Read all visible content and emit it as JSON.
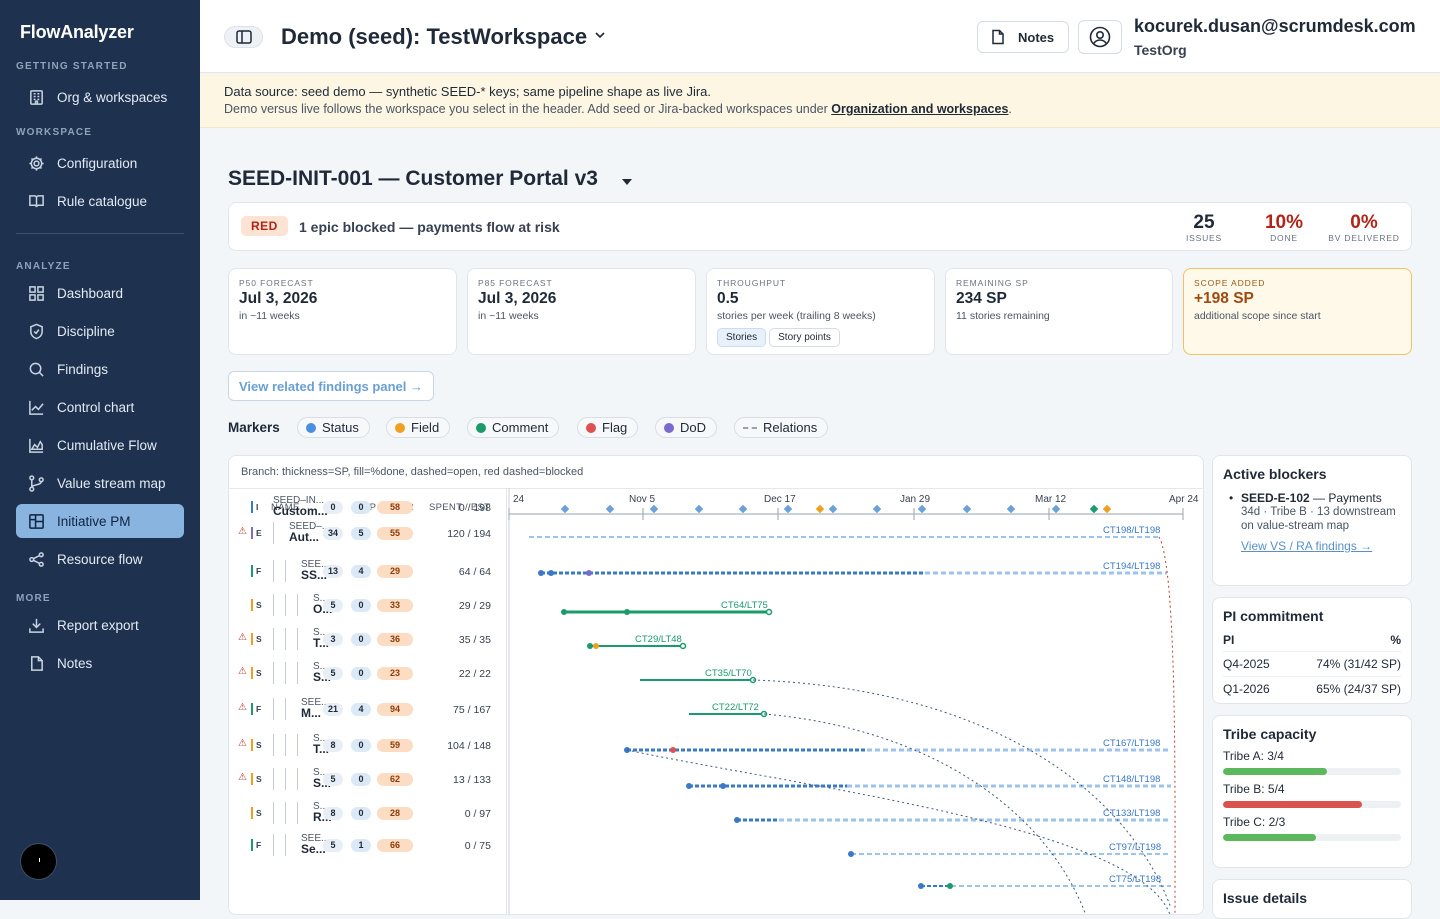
{
  "app": {
    "name": "FlowAnalyzer"
  },
  "sidebar": {
    "sections": {
      "getting_started": "GETTING STARTED",
      "workspace": "WORKSPACE",
      "analyze": "ANALYZE",
      "more": "MORE"
    },
    "items": [
      {
        "label": "Org & workspaces",
        "icon": "building-icon"
      },
      {
        "label": "Configuration",
        "icon": "gear-icon"
      },
      {
        "label": "Rule catalogue",
        "icon": "book-icon"
      },
      {
        "label": "Dashboard",
        "icon": "grid-icon"
      },
      {
        "label": "Discipline",
        "icon": "shield-icon"
      },
      {
        "label": "Findings",
        "icon": "search-icon"
      },
      {
        "label": "Control chart",
        "icon": "line-chart-icon"
      },
      {
        "label": "Cumulative Flow",
        "icon": "area-chart-icon"
      },
      {
        "label": "Value stream map",
        "icon": "branch-icon"
      },
      {
        "label": "Initiative PM",
        "icon": "layout-icon"
      },
      {
        "label": "Resource flow",
        "icon": "share-icon"
      },
      {
        "label": "Report export",
        "icon": "download-icon"
      },
      {
        "label": "Notes",
        "icon": "note-icon"
      }
    ],
    "active": "Initiative PM"
  },
  "header": {
    "workspace": "Demo (seed): TestWorkspace",
    "notes_label": "Notes",
    "email": "kocurek.dusan@scrumdesk.com",
    "org": "TestOrg"
  },
  "banner": {
    "line1": "Data source: seed demo — synthetic SEED-* keys; same pipeline shape as live Jira.",
    "line2_pre": "Demo versus live follows the workspace you select in the header. Add seed or Jira-backed workspaces under ",
    "line2_link": "Organization and workspaces",
    "line2_post": "."
  },
  "initiative": {
    "title": "SEED-INIT-001 — Customer Portal v3"
  },
  "status": {
    "badge": "RED",
    "text": "1 epic blocked — payments flow at risk",
    "stats": [
      {
        "value": "25",
        "label": "ISSUES",
        "color": "#1f2937"
      },
      {
        "value": "10%",
        "label": "DONE",
        "color": "#b42318"
      },
      {
        "value": "0%",
        "label": "BV DELIVERED",
        "color": "#b42318"
      }
    ]
  },
  "cards": [
    {
      "title": "P50 FORECAST",
      "value": "Jul 3, 2026",
      "sub": "in ~11 weeks"
    },
    {
      "title": "P85 FORECAST",
      "value": "Jul 3, 2026",
      "sub": "in ~11 weeks"
    },
    {
      "title": "THROUGHPUT",
      "value": "0.5",
      "sub": "stories per week (trailing 8 weeks)",
      "chips": [
        "Stories",
        "Story points"
      ]
    },
    {
      "title": "REMAINING SP",
      "value": "234 SP",
      "sub": "11 stories remaining"
    },
    {
      "title": "SCOPE ADDED",
      "value": "+198 SP",
      "sub": "additional scope since start"
    }
  ],
  "findings_button": "View related findings panel →",
  "markers": {
    "label": "Markers",
    "items": [
      {
        "label": "Status",
        "color": "#4a8fe0"
      },
      {
        "label": "Field",
        "color": "#f0a020"
      },
      {
        "label": "Comment",
        "color": "#1a9b6b"
      },
      {
        "label": "Flag",
        "color": "#e05050"
      },
      {
        "label": "DoD",
        "color": "#7b6ad0"
      },
      {
        "label": "Relations",
        "color": "dashed"
      }
    ]
  },
  "gantt": {
    "legend": "Branch: thickness=SP, fill=%done, dashed=open, red dashed=blocked",
    "headers": {
      "name": "NAME",
      "sp": "SP / BV / R",
      "spent": "SPENT / EST"
    },
    "axis": [
      "24",
      "Nov 5",
      "Dec 17",
      "Jan 29",
      "Mar 12",
      "Apr 24"
    ],
    "rows": [
      {
        "type": "I",
        "name1": "SEED–IN...",
        "name2": "Custom...",
        "sp": "0",
        "bv": "0",
        "r": "58",
        "spent": "0 / 198",
        "ct": "CT198/LT198",
        "warn": false,
        "color": "#3a78c8"
      },
      {
        "type": "E",
        "name1": "SEED–...",
        "name2": "Aut...",
        "sp": "34",
        "bv": "5",
        "r": "55",
        "spent": "120 / 194",
        "ct": "CT194/LT198",
        "warn": true,
        "color": "#3a78c8"
      },
      {
        "type": "F",
        "name1": "SEE...",
        "name2": "SS...",
        "sp": "13",
        "bv": "4",
        "r": "29",
        "spent": "64 / 64",
        "ct": "CT64/LT75",
        "warn": false,
        "color": "#1a9b6b"
      },
      {
        "type": "S",
        "name1": "S...",
        "name2": "O...",
        "sp": "5",
        "bv": "0",
        "r": "33",
        "spent": "29 / 29",
        "ct": "CT29/LT48",
        "warn": false,
        "color": "#1a9b6b"
      },
      {
        "type": "S",
        "name1": "S...",
        "name2": "T...",
        "sp": "3",
        "bv": "0",
        "r": "36",
        "spent": "35 / 35",
        "ct": "CT35/LT70",
        "warn": true,
        "color": "#1a9b6b"
      },
      {
        "type": "S",
        "name1": "S...",
        "name2": "S...",
        "sp": "5",
        "bv": "0",
        "r": "23",
        "spent": "22 / 22",
        "ct": "CT22/LT72",
        "warn": true,
        "color": "#1a9b6b"
      },
      {
        "type": "F",
        "name1": "SEE...",
        "name2": "M...",
        "sp": "21",
        "bv": "4",
        "r": "94",
        "spent": "75 / 167",
        "ct": "CT167/LT198",
        "warn": true,
        "color": "#3a78c8"
      },
      {
        "type": "S",
        "name1": "S...",
        "name2": "T...",
        "sp": "8",
        "bv": "0",
        "r": "59",
        "spent": "104 / 148",
        "ct": "CT148/LT198",
        "warn": true,
        "color": "#3a78c8"
      },
      {
        "type": "S",
        "name1": "S...",
        "name2": "S...",
        "sp": "5",
        "bv": "0",
        "r": "62",
        "spent": "13 / 133",
        "ct": "CT133/LT198",
        "warn": true,
        "color": "#3a78c8"
      },
      {
        "type": "S",
        "name1": "S...",
        "name2": "R...",
        "sp": "8",
        "bv": "0",
        "r": "28",
        "spent": "0 / 97",
        "ct": "CT97/LT198",
        "warn": false,
        "color": "#3a78c8"
      },
      {
        "type": "F",
        "name1": "SEE...",
        "name2": "Se...",
        "sp": "5",
        "bv": "1",
        "r": "66",
        "spent": "0 / 75",
        "ct": "CT75/LT198",
        "warn": false,
        "color": "#3a78c8"
      }
    ]
  },
  "blockers": {
    "title": "Active blockers",
    "items": [
      {
        "key": "SEED-E-102",
        "text": " — Payments",
        "sub": "34d · Tribe B · 13 downstream on value-stream map",
        "link": "View VS / RA findings →"
      }
    ]
  },
  "pi": {
    "title": "PI commitment",
    "headers": [
      "PI",
      "%"
    ],
    "rows": [
      [
        "Q4-2025",
        "74% (31/42 SP)"
      ],
      [
        "Q1-2026",
        "65% (24/37 SP)"
      ]
    ]
  },
  "tribes": {
    "title": "Tribe capacity",
    "items": [
      {
        "label": "Tribe A: 3/4",
        "fill": 0.75,
        "color": "#5cb85c"
      },
      {
        "label": "Tribe B: 5/4",
        "fill": 1.0,
        "color": "#d9534f"
      },
      {
        "label": "Tribe C: 2/3",
        "fill": 0.667,
        "color": "#5cb85c"
      }
    ]
  },
  "issue_details": {
    "title": "Issue details"
  }
}
